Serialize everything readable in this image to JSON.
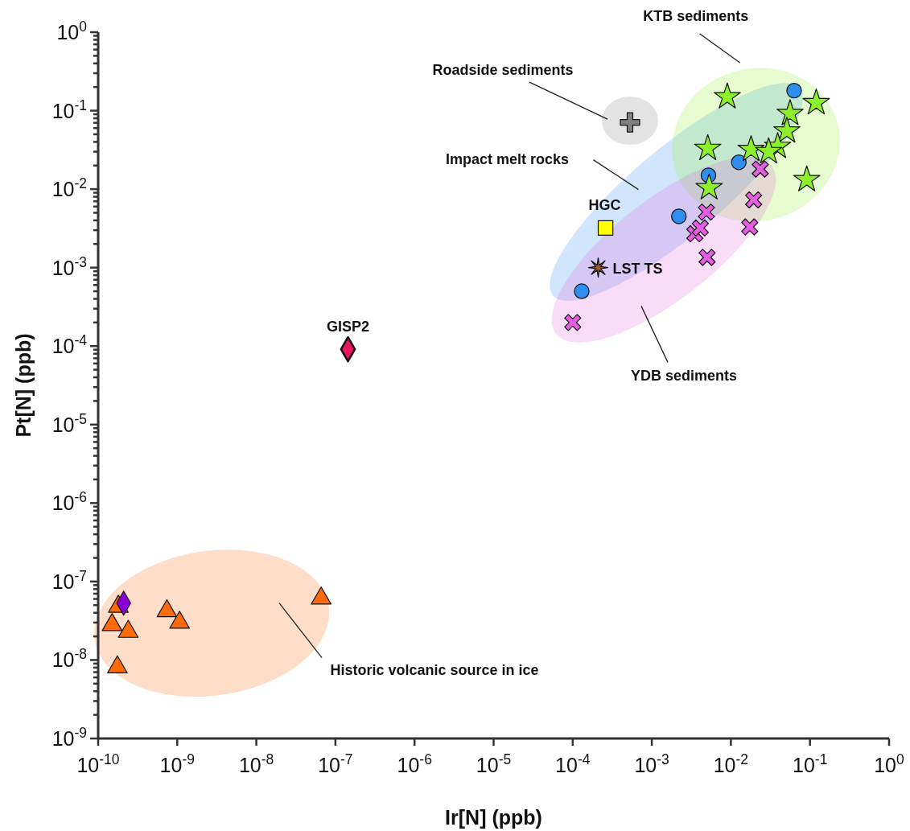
{
  "chart_data": {
    "type": "scatter",
    "xlabel": "Ir[N] (ppb)",
    "ylabel": "Pt[N] (ppb)",
    "log": "xy",
    "grid": false,
    "legend": false,
    "xlim": [
      1e-10,
      1
    ],
    "ylim": [
      1e-09,
      1
    ],
    "xticks": [
      {
        "value": 1e-10,
        "label": "10$^{-10}$"
      },
      {
        "value": 1e-09,
        "label": "10$^{-9}$"
      },
      {
        "value": 1e-08,
        "label": "10$^{-8}$"
      },
      {
        "value": 1e-07,
        "label": "10$^{-7}$"
      },
      {
        "value": 1e-06,
        "label": "10$^{-6}$"
      },
      {
        "value": 1e-05,
        "label": "10$^{-5}$"
      },
      {
        "value": 0.0001,
        "label": "10$^{-4}$"
      },
      {
        "value": 0.001,
        "label": "10$^{-3}$"
      },
      {
        "value": 0.01,
        "label": "10$^{-2}$"
      },
      {
        "value": 0.1,
        "label": "10$^{-1}$"
      },
      {
        "value": 1,
        "label": "10$^{0}$"
      }
    ],
    "yticks": [
      {
        "value": 1e-09,
        "label": "10$^{-9}$"
      },
      {
        "value": 2e-09,
        "label": null
      },
      {
        "value": 3e-09,
        "label": null
      },
      {
        "value": 4e-09,
        "label": null
      },
      {
        "value": 5e-09,
        "label": null
      },
      {
        "value": 6e-09,
        "label": null
      },
      {
        "value": 7e-09,
        "label": null
      },
      {
        "value": 8e-09,
        "label": null
      },
      {
        "value": 9e-09,
        "label": null
      },
      {
        "value": 1e-08,
        "label": "10$^{-8}$"
      },
      {
        "value": 2e-08,
        "label": null
      },
      {
        "value": 3e-08,
        "label": null
      },
      {
        "value": 4e-08,
        "label": null
      },
      {
        "value": 5e-08,
        "label": null
      },
      {
        "value": 6e-08,
        "label": null
      },
      {
        "value": 7e-08,
        "label": null
      },
      {
        "value": 8e-08,
        "label": null
      },
      {
        "value": 9e-08,
        "label": null
      },
      {
        "value": 1e-07,
        "label": "10$^{-7}$"
      },
      {
        "value": 2e-07,
        "label": null
      },
      {
        "value": 3e-07,
        "label": null
      },
      {
        "value": 4e-07,
        "label": null
      },
      {
        "value": 5e-07,
        "label": null
      },
      {
        "value": 6e-07,
        "label": null
      },
      {
        "value": 7e-07,
        "label": null
      },
      {
        "value": 8e-07,
        "label": null
      },
      {
        "value": 9e-07,
        "label": null
      },
      {
        "value": 1e-06,
        "label": "10$^{-6}$"
      },
      {
        "value": 2e-06,
        "label": null
      },
      {
        "value": 3e-06,
        "label": null
      },
      {
        "value": 4e-06,
        "label": null
      },
      {
        "value": 5e-06,
        "label": null
      },
      {
        "value": 6e-06,
        "label": null
      },
      {
        "value": 7e-06,
        "label": null
      },
      {
        "value": 8e-06,
        "label": null
      },
      {
        "value": 9e-06,
        "label": null
      },
      {
        "value": 1e-05,
        "label": "10$^{-5}$"
      },
      {
        "value": 2e-05,
        "label": null
      },
      {
        "value": 3e-05,
        "label": null
      },
      {
        "value": 4e-05,
        "label": null
      },
      {
        "value": 5e-05,
        "label": null
      },
      {
        "value": 6e-05,
        "label": null
      },
      {
        "value": 7e-05,
        "label": null
      },
      {
        "value": 8e-05,
        "label": null
      },
      {
        "value": 9e-05,
        "label": null
      },
      {
        "value": 0.0001,
        "label": "10$^{-4}$"
      },
      {
        "value": 0.0002,
        "label": null
      },
      {
        "value": 0.0003,
        "label": null
      },
      {
        "value": 0.0004,
        "label": null
      },
      {
        "value": 0.0005,
        "label": null
      },
      {
        "value": 0.0006,
        "label": null
      },
      {
        "value": 0.0007,
        "label": null
      },
      {
        "value": 0.0008,
        "label": null
      },
      {
        "value": 0.0009,
        "label": null
      },
      {
        "value": 0.001,
        "label": "10$^{-3}$"
      },
      {
        "value": 0.002,
        "label": null
      },
      {
        "value": 0.003,
        "label": null
      },
      {
        "value": 0.004,
        "label": null
      },
      {
        "value": 0.005,
        "label": null
      },
      {
        "value": 0.006,
        "label": null
      },
      {
        "value": 0.007,
        "label": null
      },
      {
        "value": 0.008,
        "label": null
      },
      {
        "value": 0.009,
        "label": null
      },
      {
        "value": 0.01,
        "label": "10$^{-2}$"
      },
      {
        "value": 0.02,
        "label": null
      },
      {
        "value": 0.03,
        "label": null
      },
      {
        "value": 0.04,
        "label": null
      },
      {
        "value": 0.05,
        "label": null
      },
      {
        "value": 0.06,
        "label": null
      },
      {
        "value": 0.07,
        "label": null
      },
      {
        "value": 0.08,
        "label": null
      },
      {
        "value": 0.09,
        "label": null
      },
      {
        "value": 0.1,
        "label": "10$^{-1}$"
      },
      {
        "value": 0.2,
        "label": null
      },
      {
        "value": 0.3,
        "label": null
      },
      {
        "value": 0.4,
        "label": null
      },
      {
        "value": 0.5,
        "label": null
      },
      {
        "value": 0.6,
        "label": null
      },
      {
        "value": 0.7,
        "label": null
      },
      {
        "value": 0.8,
        "label": null
      },
      {
        "value": 0.9,
        "label": null
      },
      {
        "value": 1,
        "label": "10$^{0}$"
      }
    ],
    "annotations": [
      "Impact melt rocks",
      "KTB sediments",
      "YDB sediments",
      "Roadside sediments",
      "Historic volcanic source in ice"
    ],
    "series": [
      {
        "color": "#2e8ff0",
        "marker": "circle",
        "x": [
          0.063,
          0.0126,
          0.0052,
          0.0022,
          0.00013
        ],
        "values": [
          0.18,
          0.022,
          0.015,
          0.0045,
          0.0005
        ]
      },
      {
        "color": "#8cf02a",
        "marker": "star",
        "x": [
          0.009,
          0.12,
          0.056,
          0.051,
          0.0051,
          0.018,
          0.039,
          0.03,
          0.0053,
          0.091
        ],
        "values": [
          0.15,
          0.126,
          0.092,
          0.055,
          0.033,
          0.032,
          0.035,
          0.03,
          0.0104,
          0.0132
        ]
      },
      {
        "color": "#e35fe0",
        "marker": "cross",
        "x": [
          0.0235,
          0.0194,
          0.0049,
          0.0035,
          0.0041,
          0.0173,
          0.005,
          0.0001
        ],
        "values": [
          0.018,
          0.0073,
          0.0051,
          0.0027,
          0.0032,
          0.0033,
          0.00135,
          0.0002
        ]
      },
      {
        "color": "#808080",
        "marker": "plus",
        "x": [
          0.00053
        ],
        "values": [
          0.071
        ]
      },
      {
        "name": "HGC",
        "color": "#ffff00",
        "marker": "square",
        "x": [
          0.00026
        ],
        "values": [
          0.0032
        ]
      },
      {
        "name": "LST TS",
        "color": "#9a5a2c",
        "marker": "asterisk",
        "x": [
          0.00021
        ],
        "values": [
          0.001
        ]
      },
      {
        "name": "GISP2",
        "color": "#e8175d",
        "marker": "diamond",
        "x": [
          1.44e-07
        ],
        "values": [
          9.1e-05
        ]
      },
      {
        "color": "#ff6a0a",
        "marker": "triangle",
        "x": [
          1.8e-10,
          1.5e-10,
          2.4e-10,
          7.4e-10,
          1.07e-09,
          1.75e-10,
          6.6e-08
        ],
        "values": [
          4.8e-08,
          2.8e-08,
          2.3e-08,
          4.2e-08,
          3e-08,
          8.1e-09,
          6.1e-08
        ]
      },
      {
        "color": "#8b00d4",
        "marker": "diamond",
        "x": [
          2.1e-10
        ],
        "values": [
          5.3e-08
        ]
      }
    ]
  }
}
